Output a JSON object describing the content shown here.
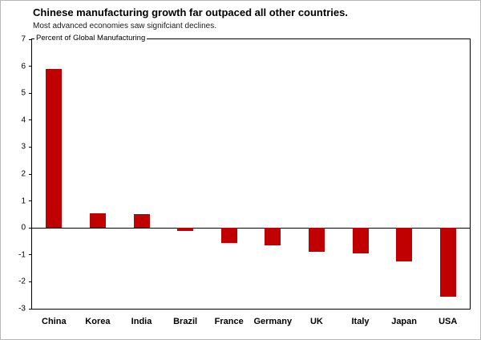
{
  "chart_data": {
    "type": "bar",
    "title": "Chinese manufacturing growth far outpaced all other countries.",
    "subtitle": "Most advanced economies saw signifciant declines.",
    "axis_note": "Percent of Global Manufacturing",
    "categories": [
      "China",
      "Korea",
      "India",
      "Brazil",
      "France",
      "Germany",
      "UK",
      "Italy",
      "Japan",
      "USA"
    ],
    "values": [
      5.9,
      0.55,
      0.5,
      -0.1,
      -0.55,
      -0.65,
      -0.9,
      -0.95,
      -1.25,
      -2.55
    ],
    "xlabel": "",
    "ylabel": "Percent of Global Manufacturing",
    "ylim": [
      -3,
      7
    ],
    "ytick_step": 1,
    "bar_color": "#c00000",
    "grid": false,
    "legend": false
  }
}
